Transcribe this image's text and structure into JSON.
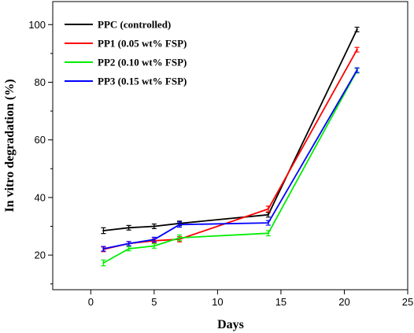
{
  "chart_data": {
    "type": "line",
    "xlabel": "Days",
    "ylabel": "In vitro degradation (%)",
    "xlim": [
      -3,
      25
    ],
    "ylim": [
      8,
      108
    ],
    "xticks": [
      "0",
      "5",
      "10",
      "15",
      "20",
      "25"
    ],
    "yticks": [
      "20",
      "40",
      "60",
      "80",
      "100"
    ],
    "legend_position": "top-left",
    "x": [
      1,
      3,
      5,
      7,
      14,
      21
    ],
    "series": [
      {
        "name": "PPC (controlled)",
        "color": "#000000",
        "values": [
          28.5,
          29.5,
          30.0,
          31.0,
          34.0,
          98.3
        ],
        "errors": [
          1.0,
          0.8,
          0.8,
          0.8,
          0.8,
          0.8
        ]
      },
      {
        "name": "PP1 (0.05 wt% FSP)",
        "color": "#ff0000",
        "values": [
          22.0,
          24.0,
          25.0,
          25.5,
          36.0,
          91.3
        ],
        "errors": [
          0.8,
          0.7,
          0.7,
          0.9,
          1.0,
          0.8
        ]
      },
      {
        "name": "PP2 (0.10 wt% FSP)",
        "color": "#00ee00",
        "values": [
          17.3,
          22.2,
          23.2,
          26.0,
          27.6,
          84.0
        ],
        "errors": [
          1.0,
          0.7,
          0.8,
          1.0,
          0.9,
          0.8
        ]
      },
      {
        "name": "PP3 (0.15 wt% FSP)",
        "color": "#0000ff",
        "values": [
          22.2,
          24.0,
          25.4,
          30.6,
          31.2,
          84.2
        ],
        "errors": [
          0.8,
          0.7,
          0.8,
          0.9,
          0.8,
          0.8
        ]
      }
    ]
  }
}
